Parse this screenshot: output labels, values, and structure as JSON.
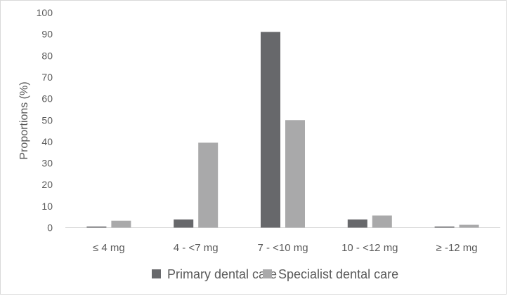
{
  "chart_data": {
    "type": "bar",
    "title": "",
    "xlabel": "",
    "ylabel": "Proportions (%)",
    "ylim": [
      0,
      100
    ],
    "yticks": [
      0,
      10,
      20,
      30,
      40,
      50,
      60,
      70,
      80,
      90,
      100
    ],
    "categories": [
      "≤ 4 mg",
      "4 - <7 mg",
      "7 - <10 mg",
      "10 - <12 mg",
      "≥ -12 mg"
    ],
    "series": [
      {
        "name": "Primary dental care",
        "color": "#67686b",
        "values": [
          0.5,
          3.8,
          91,
          3.8,
          0.5
        ]
      },
      {
        "name": "Specialist dental care",
        "color": "#a9a9aa",
        "values": [
          3.2,
          39.5,
          50,
          5.6,
          1.3
        ]
      }
    ],
    "grid": false,
    "legend": "bottom"
  }
}
